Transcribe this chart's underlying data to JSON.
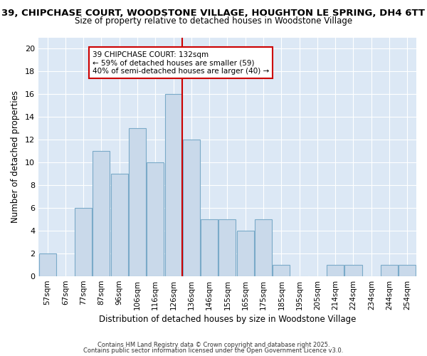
{
  "title1": "39, CHIPCHASE COURT, WOODSTONE VILLAGE, HOUGHTON LE SPRING, DH4 6TT",
  "title2": "Size of property relative to detached houses in Woodstone Village",
  "xlabel": "Distribution of detached houses by size in Woodstone Village",
  "ylabel": "Number of detached properties",
  "categories": [
    "57sqm",
    "67sqm",
    "77sqm",
    "87sqm",
    "96sqm",
    "106sqm",
    "116sqm",
    "126sqm",
    "136sqm",
    "146sqm",
    "155sqm",
    "165sqm",
    "175sqm",
    "185sqm",
    "195sqm",
    "205sqm",
    "214sqm",
    "224sqm",
    "234sqm",
    "244sqm",
    "254sqm"
  ],
  "values": [
    2,
    0,
    6,
    11,
    9,
    13,
    10,
    16,
    12,
    5,
    5,
    4,
    5,
    1,
    0,
    0,
    1,
    1,
    0,
    1,
    1
  ],
  "bar_color": "#c9d9ea",
  "bar_edge_color": "#7aaac8",
  "red_line_x": 7.5,
  "annotation_title": "39 CHIPCHASE COURT: 132sqm",
  "annotation_line1": "← 59% of detached houses are smaller (59)",
  "annotation_line2": "40% of semi-detached houses are larger (40) →",
  "annotation_box_color": "#ffffff",
  "annotation_box_edge": "#cc0000",
  "ylim": [
    0,
    21
  ],
  "yticks": [
    0,
    2,
    4,
    6,
    8,
    10,
    12,
    14,
    16,
    18,
    20
  ],
  "footnote1": "Contains HM Land Registry data © Crown copyright and database right 2025.",
  "footnote2": "Contains public sector information licensed under the Open Government Licence v3.0.",
  "fig_bg_color": "#ffffff",
  "plot_bg_color": "#dce8f5",
  "grid_color": "#ffffff",
  "title_fontsize": 9.5,
  "subtitle_fontsize": 8.5
}
